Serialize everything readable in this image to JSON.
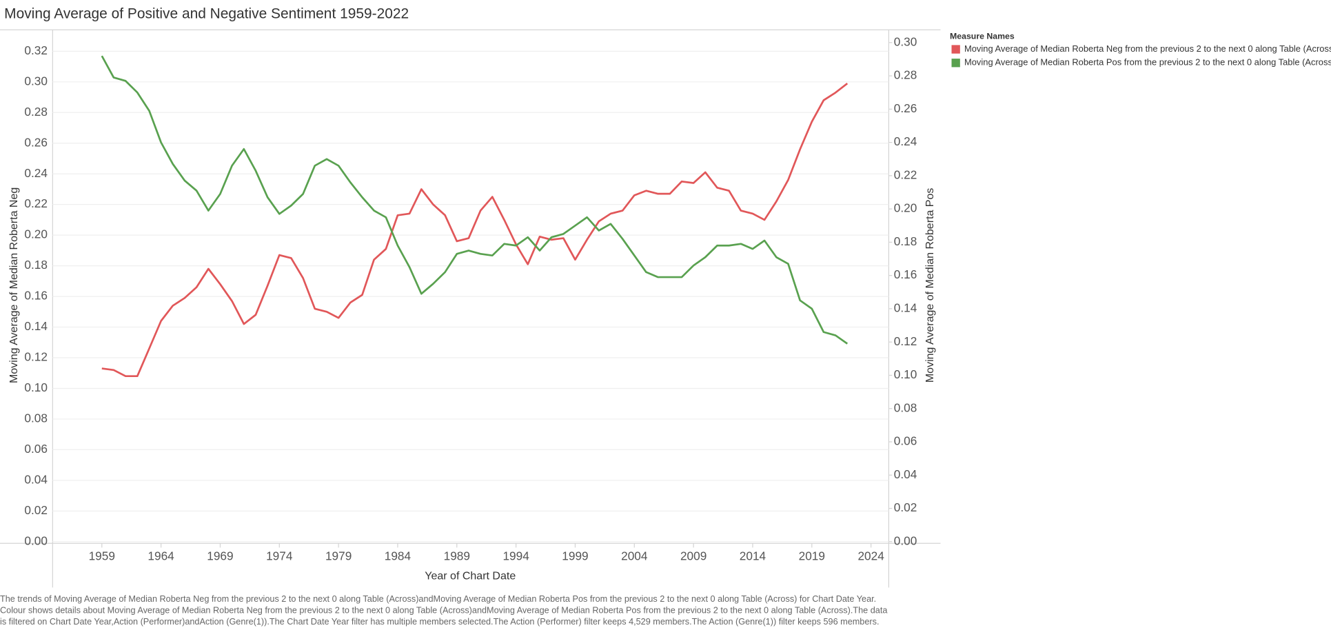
{
  "chart_data": {
    "type": "line",
    "title": "Moving Average of Positive and Negative Sentiment 1959-2022",
    "x_label": "Year of Chart Date",
    "y_label": "Moving Average of Median Roberta Neg",
    "y2_label": "Moving Average of Median Roberta Pos",
    "legend_title": "Measure Names",
    "x": [
      1959,
      1960,
      1961,
      1962,
      1963,
      1964,
      1965,
      1966,
      1967,
      1968,
      1969,
      1970,
      1971,
      1972,
      1973,
      1974,
      1975,
      1976,
      1977,
      1978,
      1979,
      1980,
      1981,
      1982,
      1983,
      1984,
      1985,
      1986,
      1987,
      1988,
      1989,
      1990,
      1991,
      1992,
      1993,
      1994,
      1995,
      1996,
      1997,
      1998,
      1999,
      2000,
      2001,
      2002,
      2003,
      2004,
      2005,
      2006,
      2007,
      2008,
      2009,
      2010,
      2011,
      2012,
      2013,
      2014,
      2015,
      2016,
      2017,
      2018,
      2019,
      2020,
      2021,
      2022
    ],
    "series": [
      {
        "name": "Moving Average of Median Roberta Neg from the previous 2 to the next 0 along Table (Across)",
        "color": "#e15759",
        "axis": "y",
        "values": [
          0.113,
          0.112,
          0.108,
          0.108,
          0.126,
          0.144,
          0.154,
          0.159,
          0.166,
          0.178,
          0.168,
          0.157,
          0.142,
          0.148,
          0.167,
          0.187,
          0.185,
          0.172,
          0.152,
          0.15,
          0.146,
          0.156,
          0.161,
          0.184,
          0.191,
          0.213,
          0.214,
          0.23,
          0.22,
          0.213,
          0.196,
          0.198,
          0.216,
          0.225,
          0.21,
          0.194,
          0.181,
          0.199,
          0.197,
          0.198,
          0.184,
          0.197,
          0.209,
          0.214,
          0.216,
          0.226,
          0.229,
          0.227,
          0.227,
          0.235,
          0.234,
          0.241,
          0.231,
          0.229,
          0.216,
          0.214,
          0.21,
          0.222,
          0.236,
          0.256,
          0.274,
          0.288,
          0.293,
          0.299
        ]
      },
      {
        "name": "Moving Average of Median Roberta Pos from the previous 2 to the next 0 along Table (Across)",
        "color": "#59a14f",
        "axis": "y2",
        "values": [
          0.292,
          0.279,
          0.277,
          0.27,
          0.259,
          0.24,
          0.227,
          0.217,
          0.211,
          0.199,
          0.209,
          0.226,
          0.236,
          0.223,
          0.207,
          0.197,
          0.202,
          0.209,
          0.226,
          0.23,
          0.226,
          0.216,
          0.207,
          0.199,
          0.195,
          0.178,
          0.165,
          0.149,
          0.155,
          0.162,
          0.173,
          0.175,
          0.173,
          0.172,
          0.179,
          0.178,
          0.183,
          0.175,
          0.183,
          0.185,
          0.19,
          0.195,
          0.187,
          0.191,
          0.182,
          0.172,
          0.162,
          0.159,
          0.159,
          0.159,
          0.166,
          0.171,
          0.178,
          0.178,
          0.179,
          0.176,
          0.181,
          0.171,
          0.167,
          0.145,
          0.14,
          0.126,
          0.124,
          0.119
        ]
      }
    ],
    "xlim": [
      1954.84,
      2025.5
    ],
    "xticks": [
      1959,
      1964,
      1969,
      1974,
      1979,
      1984,
      1989,
      1994,
      1999,
      2004,
      2009,
      2014,
      2019,
      2024
    ],
    "ylim": [
      0,
      0.334
    ],
    "yticks": [
      {
        "value": 0,
        "label": "0.00"
      },
      {
        "value": 0.02,
        "label": "0.02"
      },
      {
        "value": 0.04,
        "label": "0.04"
      },
      {
        "value": 0.06,
        "label": "0.06"
      },
      {
        "value": 0.08,
        "label": "0.08"
      },
      {
        "value": 0.1,
        "label": "0.10"
      },
      {
        "value": 0.12,
        "label": "0.12"
      },
      {
        "value": 0.14,
        "label": "0.14"
      },
      {
        "value": 0.16,
        "label": "0.16"
      },
      {
        "value": 0.18,
        "label": "0.18"
      },
      {
        "value": 0.2,
        "label": "0.20"
      },
      {
        "value": 0.22,
        "label": "0.22"
      },
      {
        "value": 0.24,
        "label": "0.24"
      },
      {
        "value": 0.26,
        "label": "0.26"
      },
      {
        "value": 0.28,
        "label": "0.28"
      },
      {
        "value": 0.3,
        "label": "0.30"
      },
      {
        "value": 0.32,
        "label": "0.32"
      }
    ],
    "y2lim": [
      0,
      0.3077
    ],
    "y2ticks": [
      {
        "value": 0,
        "label": "0.00"
      },
      {
        "value": 0.02,
        "label": "0.02"
      },
      {
        "value": 0.04,
        "label": "0.04"
      },
      {
        "value": 0.06,
        "label": "0.06"
      },
      {
        "value": 0.08,
        "label": "0.08"
      },
      {
        "value": 0.1,
        "label": "0.10"
      },
      {
        "value": 0.12,
        "label": "0.12"
      },
      {
        "value": 0.14,
        "label": "0.14"
      },
      {
        "value": 0.16,
        "label": "0.16"
      },
      {
        "value": 0.18,
        "label": "0.18"
      },
      {
        "value": 0.2,
        "label": "0.20"
      },
      {
        "value": 0.22,
        "label": "0.22"
      },
      {
        "value": 0.24,
        "label": "0.24"
      },
      {
        "value": 0.26,
        "label": "0.26"
      },
      {
        "value": 0.28,
        "label": "0.28"
      },
      {
        "value": 0.3,
        "label": "0.30"
      }
    ],
    "grid": true,
    "legend_position": "right",
    "footnote": [
      "The trends of Moving Average of Median Roberta Neg from the previous 2 to the next 0 along Table (Across)andMoving Average of Median Roberta Pos from the previous 2 to the next 0 along Table (Across) for Chart Date Year.",
      "Colour shows details about Moving Average of Median Roberta Neg from the previous 2 to the next 0 along Table (Across)andMoving Average of Median Roberta Pos from the previous 2 to the next 0 along Table (Across).The data",
      "is filtered on Chart Date Year,Action (Performer)andAction (Genre(1)).The Chart Date Year filter has multiple members selected.The Action (Performer) filter keeps 4,529 members.The Action (Genre(1)) filter keeps 596 members."
    ]
  }
}
